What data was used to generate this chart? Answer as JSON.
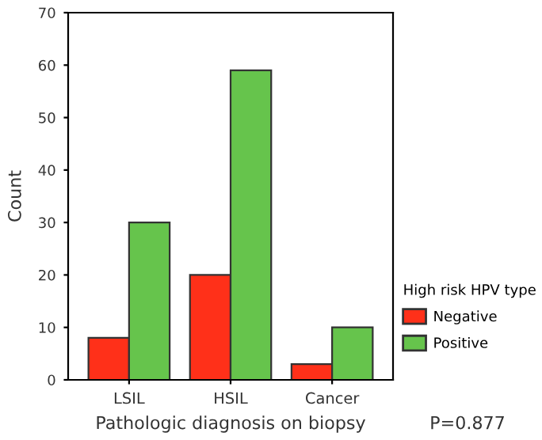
{
  "chart_data": {
    "type": "bar",
    "xlabel": "Pathologic diagnosis on biopsy",
    "ylabel": "Count",
    "categories": [
      "LSIL",
      "HSIL",
      "Cancer"
    ],
    "series": [
      {
        "name": "Negative",
        "color": "#ff3019",
        "values": [
          8,
          20,
          3
        ]
      },
      {
        "name": "Positive",
        "color": "#66c44c",
        "values": [
          30,
          59,
          10
        ]
      }
    ],
    "ylim": [
      0,
      70
    ],
    "yticks": [
      0,
      10,
      20,
      30,
      40,
      50,
      60,
      70
    ],
    "grid": false,
    "legend": "right",
    "legend_title": "High risk HPV type",
    "annotations": [
      "P=0.877"
    ]
  }
}
